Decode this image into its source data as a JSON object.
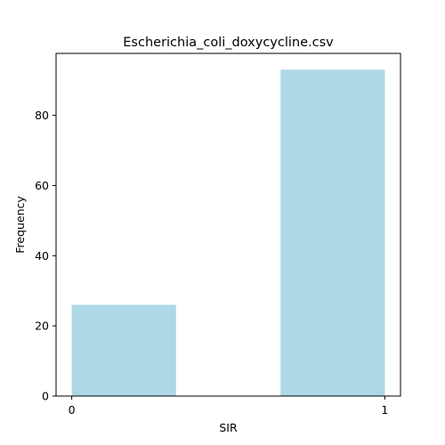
{
  "chart_data": {
    "type": "bar",
    "title": "Escherichia_coli_doxycycline.csv",
    "xlabel": "SIR",
    "ylabel": "Frequency",
    "bins": [
      {
        "start": 0.0,
        "end": 0.333,
        "value": 26
      },
      {
        "start": 0.333,
        "end": 0.667,
        "value": 0
      },
      {
        "start": 0.667,
        "end": 1.0,
        "value": 93
      }
    ],
    "xlim": [
      -0.05,
      1.05
    ],
    "ylim": [
      0,
      97.65
    ],
    "xticks": [
      0,
      1
    ],
    "xtick_labels": [
      "0",
      "1"
    ],
    "yticks": [
      0,
      20,
      40,
      60,
      80
    ],
    "ytick_labels": [
      "0",
      "20",
      "40",
      "60",
      "80"
    ],
    "bar_color": "#add8e6",
    "grid": false,
    "legend": false
  }
}
